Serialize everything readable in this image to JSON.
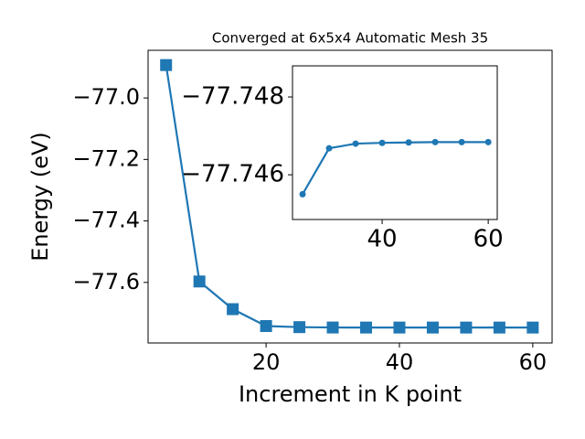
{
  "chart_data": [
    {
      "type": "line",
      "title": "Converged at 6x5x4 Automatic Mesh 35",
      "xlabel": "Increment in K point",
      "ylabel": "Energy (eV)",
      "x": [
        5,
        10,
        15,
        20,
        25,
        30,
        35,
        40,
        45,
        50,
        55,
        60
      ],
      "series": [
        {
          "color": "#1f77b4",
          "marker": "square",
          "values": [
            -76.893,
            -77.597,
            -77.687,
            -77.742,
            -77.7455,
            -77.74668,
            -77.7468,
            -77.74682,
            -77.74683,
            -77.74684,
            -77.74684,
            -77.74684
          ]
        }
      ],
      "xlim": [
        2.3,
        62.9
      ],
      "xticks": [
        20,
        40,
        60
      ],
      "ylim": [
        -77.797,
        -76.845
      ],
      "yticks": [
        {
          "value": -77.6,
          "label": "−77.6"
        },
        {
          "value": -77.4,
          "label": "−77.4"
        },
        {
          "value": -77.2,
          "label": "−77.2"
        },
        {
          "value": -77.0,
          "label": "−77.0"
        }
      ]
    },
    {
      "type": "line",
      "x": [
        25,
        30,
        35,
        40,
        45,
        50,
        55,
        60
      ],
      "series": [
        {
          "color": "#1f77b4",
          "marker": "circle",
          "values": [
            -77.7455,
            -77.74668,
            -77.7468,
            -77.74682,
            -77.74683,
            -77.74684,
            -77.74684,
            -77.74684
          ]
        }
      ],
      "xlim": [
        23.1,
        61.7
      ],
      "xticks": [
        40,
        60
      ],
      "ylim": [
        -77.74485,
        -77.7488
      ],
      "yticks": [
        {
          "value": -77.746,
          "label": "−77.746"
        },
        {
          "value": -77.748,
          "label": "−77.748"
        }
      ]
    }
  ]
}
